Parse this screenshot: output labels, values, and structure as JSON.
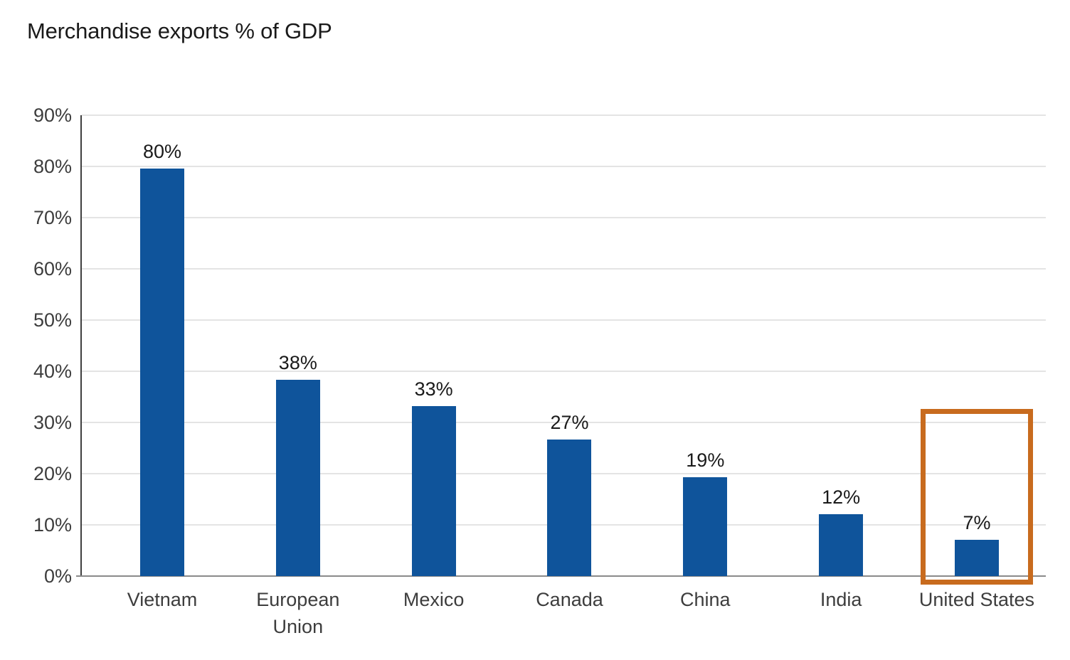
{
  "title": "Merchandise exports % of GDP",
  "colors": {
    "bar": "#0F549B",
    "highlight": "#C86B1E",
    "gridline": "#E4E4E4",
    "x_axis": "#8A8A8A",
    "y_axis": "#3F3F3F",
    "title_text": "#1A1A1A",
    "tick_text": "#3D3D3D"
  },
  "chart_data": {
    "type": "bar",
    "title": "Merchandise exports % of GDP",
    "xlabel": "",
    "ylabel": "",
    "categories": [
      "Vietnam",
      "European\nUnion",
      "Mexico",
      "Canada",
      "China",
      "India",
      "United States"
    ],
    "values": [
      80,
      38,
      33,
      27,
      19,
      12,
      7
    ],
    "value_labels": [
      "80%",
      "38%",
      "33%",
      "27%",
      "19%",
      "12%",
      "7%"
    ],
    "plotted_values": [
      79.6,
      38.4,
      33.2,
      26.6,
      19.3,
      12.1,
      7.1
    ],
    "ylim": [
      0,
      90
    ],
    "yticks": [
      0,
      10,
      20,
      30,
      40,
      50,
      60,
      70,
      80,
      90
    ],
    "ytick_labels": [
      "0%",
      "10%",
      "20%",
      "30%",
      "40%",
      "50%",
      "60%",
      "70%",
      "80%",
      "90%"
    ],
    "grid": true,
    "legend": false,
    "bar_color": "#0F549B",
    "highlight": {
      "category": "United States",
      "style": "box-outline",
      "color": "#C86B1E"
    }
  }
}
